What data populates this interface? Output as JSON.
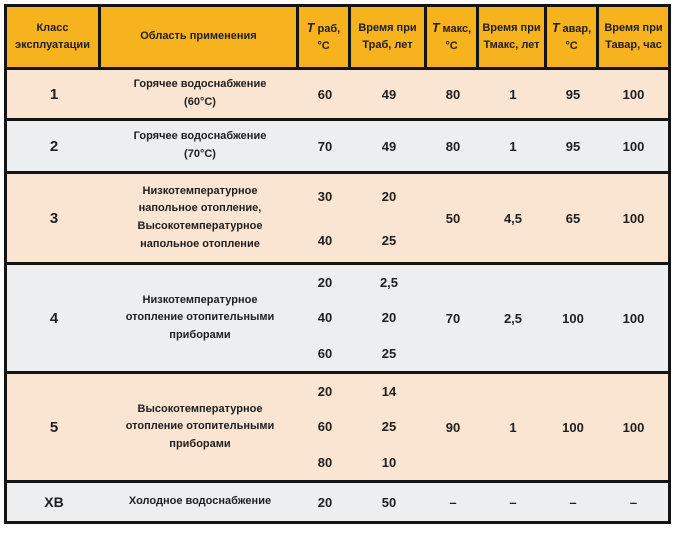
{
  "table": {
    "header": [
      {
        "it": "",
        "l1": "Класс",
        "l2": "эксплуатации"
      },
      {
        "it": "",
        "l1": "Область применения",
        "l2": ""
      },
      {
        "it": "T",
        "l1": " раб,",
        "l2": "°C"
      },
      {
        "it": "",
        "l1": "Время при",
        "l2": "Траб, лет"
      },
      {
        "it": "T",
        "l1": " макс,",
        "l2": "°C"
      },
      {
        "it": "",
        "l1": "Время при",
        "l2": "Тмакс, лет"
      },
      {
        "it": "T",
        "l1": " авар,",
        "l2": "°C"
      },
      {
        "it": "",
        "l1": "Время при",
        "l2": "Тавар, час"
      }
    ],
    "rows": [
      {
        "klass": "1",
        "app": "Горячее водоснабжение (60°C)",
        "t_rab": [
          "60"
        ],
        "time_rab": [
          "49"
        ],
        "t_max": "80",
        "time_max": "1",
        "t_avar": "95",
        "time_avar": "100"
      },
      {
        "klass": "2",
        "app": "Горячее водоснабжение (70°C)",
        "t_rab": [
          "70"
        ],
        "time_rab": [
          "49"
        ],
        "t_max": "80",
        "time_max": "1",
        "t_avar": "95",
        "time_avar": "100"
      },
      {
        "klass": "3",
        "app": "Низкотемпературное напольное отопление, Высокотемпературное напольное отопление",
        "t_rab": [
          "30",
          "40"
        ],
        "time_rab": [
          "20",
          "25"
        ],
        "t_max": "50",
        "time_max": "4,5",
        "t_avar": "65",
        "time_avar": "100"
      },
      {
        "klass": "4",
        "app": "Низкотемпературное отопление отопительными приборами",
        "t_rab": [
          "20",
          "40",
          "60"
        ],
        "time_rab": [
          "2,5",
          "20",
          "25"
        ],
        "t_max": "70",
        "time_max": "2,5",
        "t_avar": "100",
        "time_avar": "100"
      },
      {
        "klass": "5",
        "app": "Высокотемпературное отопление отопительными приборами",
        "t_rab": [
          "20",
          "60",
          "80"
        ],
        "time_rab": [
          "14",
          "25",
          "10"
        ],
        "t_max": "90",
        "time_max": "1",
        "t_avar": "100",
        "time_avar": "100"
      },
      {
        "klass": "ХВ",
        "app": "Холодное водоснабжение",
        "t_rab": [
          "20"
        ],
        "time_rab": [
          "50"
        ],
        "t_max": "–",
        "time_max": "–",
        "t_avar": "–",
        "time_avar": "–"
      }
    ]
  },
  "colors": {
    "header_bg": "#F7B31E",
    "row_peach": "#FAE5D3",
    "row_gray": "#EDEEF0",
    "border": "#141414",
    "text": "#1F1F1F"
  }
}
